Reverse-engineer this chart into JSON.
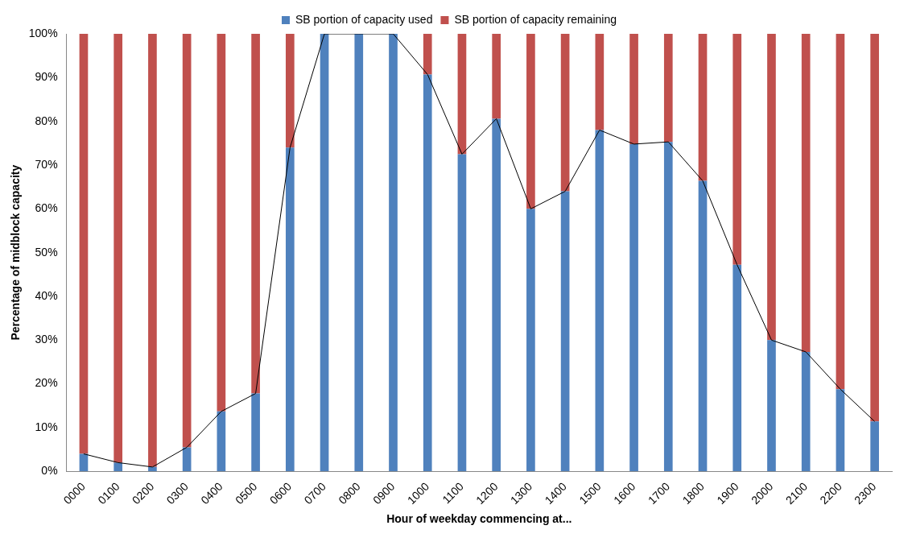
{
  "chart_data": {
    "type": "bar",
    "stacked": true,
    "xlabel": "Hour of weekday commencing at...",
    "ylabel": "Percentage of midblock capacity",
    "categories": [
      "0000",
      "0100",
      "0200",
      "0300",
      "0400",
      "0500",
      "0600",
      "0700",
      "0800",
      "0900",
      "1000",
      "1100",
      "1200",
      "1300",
      "1400",
      "1500",
      "1600",
      "1700",
      "1800",
      "1900",
      "2000",
      "2100",
      "2200",
      "2300"
    ],
    "series": [
      {
        "name": "SB portion of capacity used",
        "color": "#4f81bd",
        "values": [
          4,
          2,
          1,
          5.5,
          13.7,
          17.8,
          74,
          100,
          100,
          100,
          90.7,
          72.5,
          80.6,
          60,
          64,
          78,
          74.8,
          75.3,
          66.4,
          47.2,
          30,
          27.3,
          18.8,
          11.4
        ]
      },
      {
        "name": "SB portion of capacity remaining",
        "color": "#c0504d",
        "values": [
          96,
          98,
          99,
          94.5,
          86.3,
          82.2,
          26,
          0,
          0,
          0,
          9.3,
          27.5,
          19.4,
          40,
          36,
          22,
          25.2,
          24.7,
          33.6,
          52.8,
          70,
          72.7,
          81.2,
          88.6
        ]
      },
      {
        "type": "line",
        "color": "#000000",
        "values": [
          4,
          2,
          1,
          5.5,
          13.7,
          17.8,
          74,
          100,
          100,
          100,
          90.7,
          72.5,
          80.6,
          60,
          64,
          78,
          74.8,
          75.3,
          66.4,
          47.2,
          30,
          27.3,
          18.8,
          11.4
        ]
      }
    ],
    "ylim": [
      0,
      100
    ],
    "yticks": [
      {
        "value": 0,
        "label": "0%"
      },
      {
        "value": 10,
        "label": "10%"
      },
      {
        "value": 20,
        "label": "20%"
      },
      {
        "value": 30,
        "label": "30%"
      },
      {
        "value": 40,
        "label": "40%"
      },
      {
        "value": 50,
        "label": "50%"
      },
      {
        "value": 60,
        "label": "60%"
      },
      {
        "value": 70,
        "label": "70%"
      },
      {
        "value": 80,
        "label": "80%"
      },
      {
        "value": 90,
        "label": "90%"
      },
      {
        "value": 100,
        "label": "100%"
      }
    ],
    "legend": "top",
    "grid": false,
    "marker": "none"
  }
}
